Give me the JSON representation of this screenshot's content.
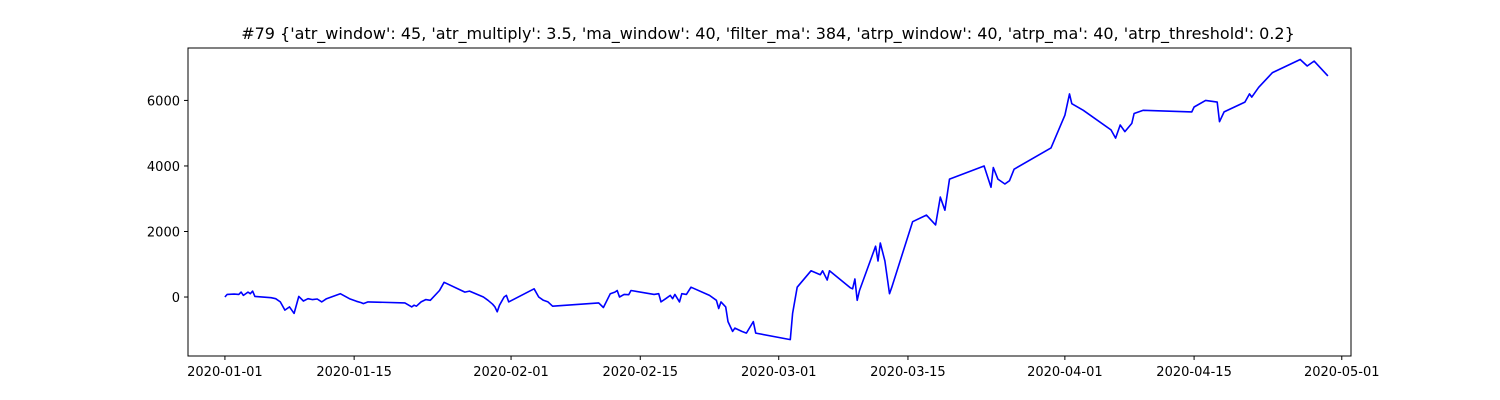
{
  "chart_data": {
    "type": "line",
    "title": "#79 {'atr_window': 45, 'atr_multiply': 3.5, 'ma_window': 40, 'filter_ma': 384, 'atrp_window': 40, 'atrp_ma': 40, 'atrp_threshold': 0.2}",
    "xlabel": "",
    "ylabel": "",
    "xlim": [
      "2019-12-28",
      "2020-05-02"
    ],
    "ylim": [
      -1800,
      7600
    ],
    "grid": false,
    "x_ticks": [
      "2020-01-01",
      "2020-01-15",
      "2020-02-01",
      "2020-02-15",
      "2020-03-01",
      "2020-03-15",
      "2020-04-01",
      "2020-04-15",
      "2020-05-01"
    ],
    "y_ticks": [
      0,
      2000,
      4000,
      6000
    ],
    "series": [
      {
        "color": "#0000ff",
        "points": [
          [
            "2020-01-01 00:00",
            0
          ],
          [
            "2020-01-01 06:00",
            80
          ],
          [
            "2020-01-02 00:00",
            90
          ],
          [
            "2020-01-02 12:00",
            80
          ],
          [
            "2020-01-02 18:00",
            150
          ],
          [
            "2020-01-03 00:00",
            50
          ],
          [
            "2020-01-03 12:00",
            150
          ],
          [
            "2020-01-03 18:00",
            100
          ],
          [
            "2020-01-04 00:00",
            180
          ],
          [
            "2020-01-04 06:00",
            20
          ],
          [
            "2020-01-06 00:00",
            -20
          ],
          [
            "2020-01-06 12:00",
            -50
          ],
          [
            "2020-01-07 00:00",
            -150
          ],
          [
            "2020-01-07 12:00",
            -400
          ],
          [
            "2020-01-08 00:00",
            -300
          ],
          [
            "2020-01-08 12:00",
            -500
          ],
          [
            "2020-01-09 00:00",
            20
          ],
          [
            "2020-01-09 12:00",
            -120
          ],
          [
            "2020-01-10 00:00",
            -50
          ],
          [
            "2020-01-10 12:00",
            -80
          ],
          [
            "2020-01-11 00:00",
            -60
          ],
          [
            "2020-01-11 12:00",
            -150
          ],
          [
            "2020-01-12 00:00",
            -50
          ],
          [
            "2020-01-13 12:00",
            100
          ],
          [
            "2020-01-14 12:00",
            -50
          ],
          [
            "2020-01-15 06:00",
            -130
          ],
          [
            "2020-01-15 18:00",
            -170
          ],
          [
            "2020-01-16 00:00",
            -200
          ],
          [
            "2020-01-16 12:00",
            -150
          ],
          [
            "2020-01-20 12:00",
            -180
          ],
          [
            "2020-01-21 06:00",
            -300
          ],
          [
            "2020-01-21 12:00",
            -250
          ],
          [
            "2020-01-21 18:00",
            -280
          ],
          [
            "2020-01-22 06:00",
            -150
          ],
          [
            "2020-01-22 18:00",
            -80
          ],
          [
            "2020-01-23 06:00",
            -100
          ],
          [
            "2020-01-24 06:00",
            200
          ],
          [
            "2020-01-24 18:00",
            450
          ],
          [
            "2020-01-27 00:00",
            150
          ],
          [
            "2020-01-27 12:00",
            180
          ],
          [
            "2020-01-29 00:00",
            0
          ],
          [
            "2020-01-29 12:00",
            -100
          ],
          [
            "2020-01-30 00:00",
            -220
          ],
          [
            "2020-01-30 06:00",
            -300
          ],
          [
            "2020-01-30 12:00",
            -450
          ],
          [
            "2020-01-30 18:00",
            -250
          ],
          [
            "2020-01-31 06:00",
            0
          ],
          [
            "2020-01-31 12:00",
            50
          ],
          [
            "2020-01-31 18:00",
            -150
          ],
          [
            "2020-02-03 12:00",
            250
          ],
          [
            "2020-02-04 00:00",
            0
          ],
          [
            "2020-02-04 12:00",
            -100
          ],
          [
            "2020-02-05 00:00",
            -150
          ],
          [
            "2020-02-05 12:00",
            -280
          ],
          [
            "2020-02-10 12:00",
            -180
          ],
          [
            "2020-02-11 00:00",
            -320
          ],
          [
            "2020-02-11 18:00",
            100
          ],
          [
            "2020-02-12 06:00",
            150
          ],
          [
            "2020-02-12 12:00",
            200
          ],
          [
            "2020-02-12 18:00",
            0
          ],
          [
            "2020-02-13 06:00",
            80
          ],
          [
            "2020-02-13 18:00",
            70
          ],
          [
            "2020-02-14 00:00",
            200
          ],
          [
            "2020-02-16 12:00",
            80
          ],
          [
            "2020-02-17 00:00",
            100
          ],
          [
            "2020-02-17 06:00",
            -150
          ],
          [
            "2020-02-17 18:00",
            -50
          ],
          [
            "2020-02-18 06:00",
            50
          ],
          [
            "2020-02-18 12:00",
            -50
          ],
          [
            "2020-02-18 18:00",
            80
          ],
          [
            "2020-02-19 06:00",
            -150
          ],
          [
            "2020-02-19 12:00",
            100
          ],
          [
            "2020-02-20 00:00",
            80
          ],
          [
            "2020-02-20 12:00",
            300
          ],
          [
            "2020-02-22 12:00",
            50
          ],
          [
            "2020-02-23 06:00",
            -100
          ],
          [
            "2020-02-23 12:00",
            -350
          ],
          [
            "2020-02-23 18:00",
            -150
          ],
          [
            "2020-02-24 06:00",
            -300
          ],
          [
            "2020-02-24 12:00",
            -750
          ],
          [
            "2020-02-25 00:00",
            -1050
          ],
          [
            "2020-02-25 06:00",
            -950
          ],
          [
            "2020-02-26 00:00",
            -1050
          ],
          [
            "2020-02-26 12:00",
            -1100
          ],
          [
            "2020-02-27 06:00",
            -750
          ],
          [
            "2020-02-27 12:00",
            -1100
          ],
          [
            "2020-03-02 06:00",
            -1300
          ],
          [
            "2020-03-02 12:00",
            -500
          ],
          [
            "2020-03-03 00:00",
            300
          ],
          [
            "2020-03-04 12:00",
            800
          ],
          [
            "2020-03-05 12:00",
            680
          ],
          [
            "2020-03-05 18:00",
            800
          ],
          [
            "2020-03-06 06:00",
            520
          ],
          [
            "2020-03-06 12:00",
            800
          ],
          [
            "2020-03-08 18:00",
            280
          ],
          [
            "2020-03-09 00:00",
            250
          ],
          [
            "2020-03-09 06:00",
            550
          ],
          [
            "2020-03-09 12:00",
            -100
          ],
          [
            "2020-03-09 18:00",
            200
          ],
          [
            "2020-03-11 12:00",
            1550
          ],
          [
            "2020-03-11 18:00",
            1100
          ],
          [
            "2020-03-12 00:00",
            1650
          ],
          [
            "2020-03-12 12:00",
            1100
          ],
          [
            "2020-03-13 00:00",
            100
          ],
          [
            "2020-03-13 06:00",
            300
          ],
          [
            "2020-03-15 12:00",
            2300
          ],
          [
            "2020-03-17 00:00",
            2500
          ],
          [
            "2020-03-18 00:00",
            2200
          ],
          [
            "2020-03-18 12:00",
            3050
          ],
          [
            "2020-03-19 00:00",
            2650
          ],
          [
            "2020-03-19 12:00",
            3600
          ],
          [
            "2020-03-23 06:00",
            4000
          ],
          [
            "2020-03-24 00:00",
            3350
          ],
          [
            "2020-03-24 06:00",
            3950
          ],
          [
            "2020-03-24 18:00",
            3600
          ],
          [
            "2020-03-25 12:00",
            3450
          ],
          [
            "2020-03-26 00:00",
            3550
          ],
          [
            "2020-03-26 12:00",
            3900
          ],
          [
            "2020-03-30 12:00",
            4550
          ],
          [
            "2020-04-01 00:00",
            5550
          ],
          [
            "2020-04-01 12:00",
            6200
          ],
          [
            "2020-04-01 18:00",
            5900
          ],
          [
            "2020-04-03 00:00",
            5700
          ],
          [
            "2020-04-06 00:00",
            5100
          ],
          [
            "2020-04-06 12:00",
            4850
          ],
          [
            "2020-04-07 00:00",
            5250
          ],
          [
            "2020-04-07 12:00",
            5050
          ],
          [
            "2020-04-08 06:00",
            5300
          ],
          [
            "2020-04-08 12:00",
            5600
          ],
          [
            "2020-04-09 12:00",
            5700
          ],
          [
            "2020-04-14 18:00",
            5650
          ],
          [
            "2020-04-15 00:00",
            5800
          ],
          [
            "2020-04-16 06:00",
            6000
          ],
          [
            "2020-04-17 12:00",
            5950
          ],
          [
            "2020-04-17 18:00",
            5350
          ],
          [
            "2020-04-18 06:00",
            5650
          ],
          [
            "2020-04-20 12:00",
            5950
          ],
          [
            "2020-04-21 00:00",
            6200
          ],
          [
            "2020-04-21 06:00",
            6100
          ],
          [
            "2020-04-22 00:00",
            6400
          ],
          [
            "2020-04-23 12:00",
            6850
          ],
          [
            "2020-04-26 12:00",
            7250
          ],
          [
            "2020-04-27 06:00",
            7050
          ],
          [
            "2020-04-28 00:00",
            7200
          ],
          [
            "2020-04-29 12:00",
            6750
          ]
        ]
      }
    ]
  }
}
